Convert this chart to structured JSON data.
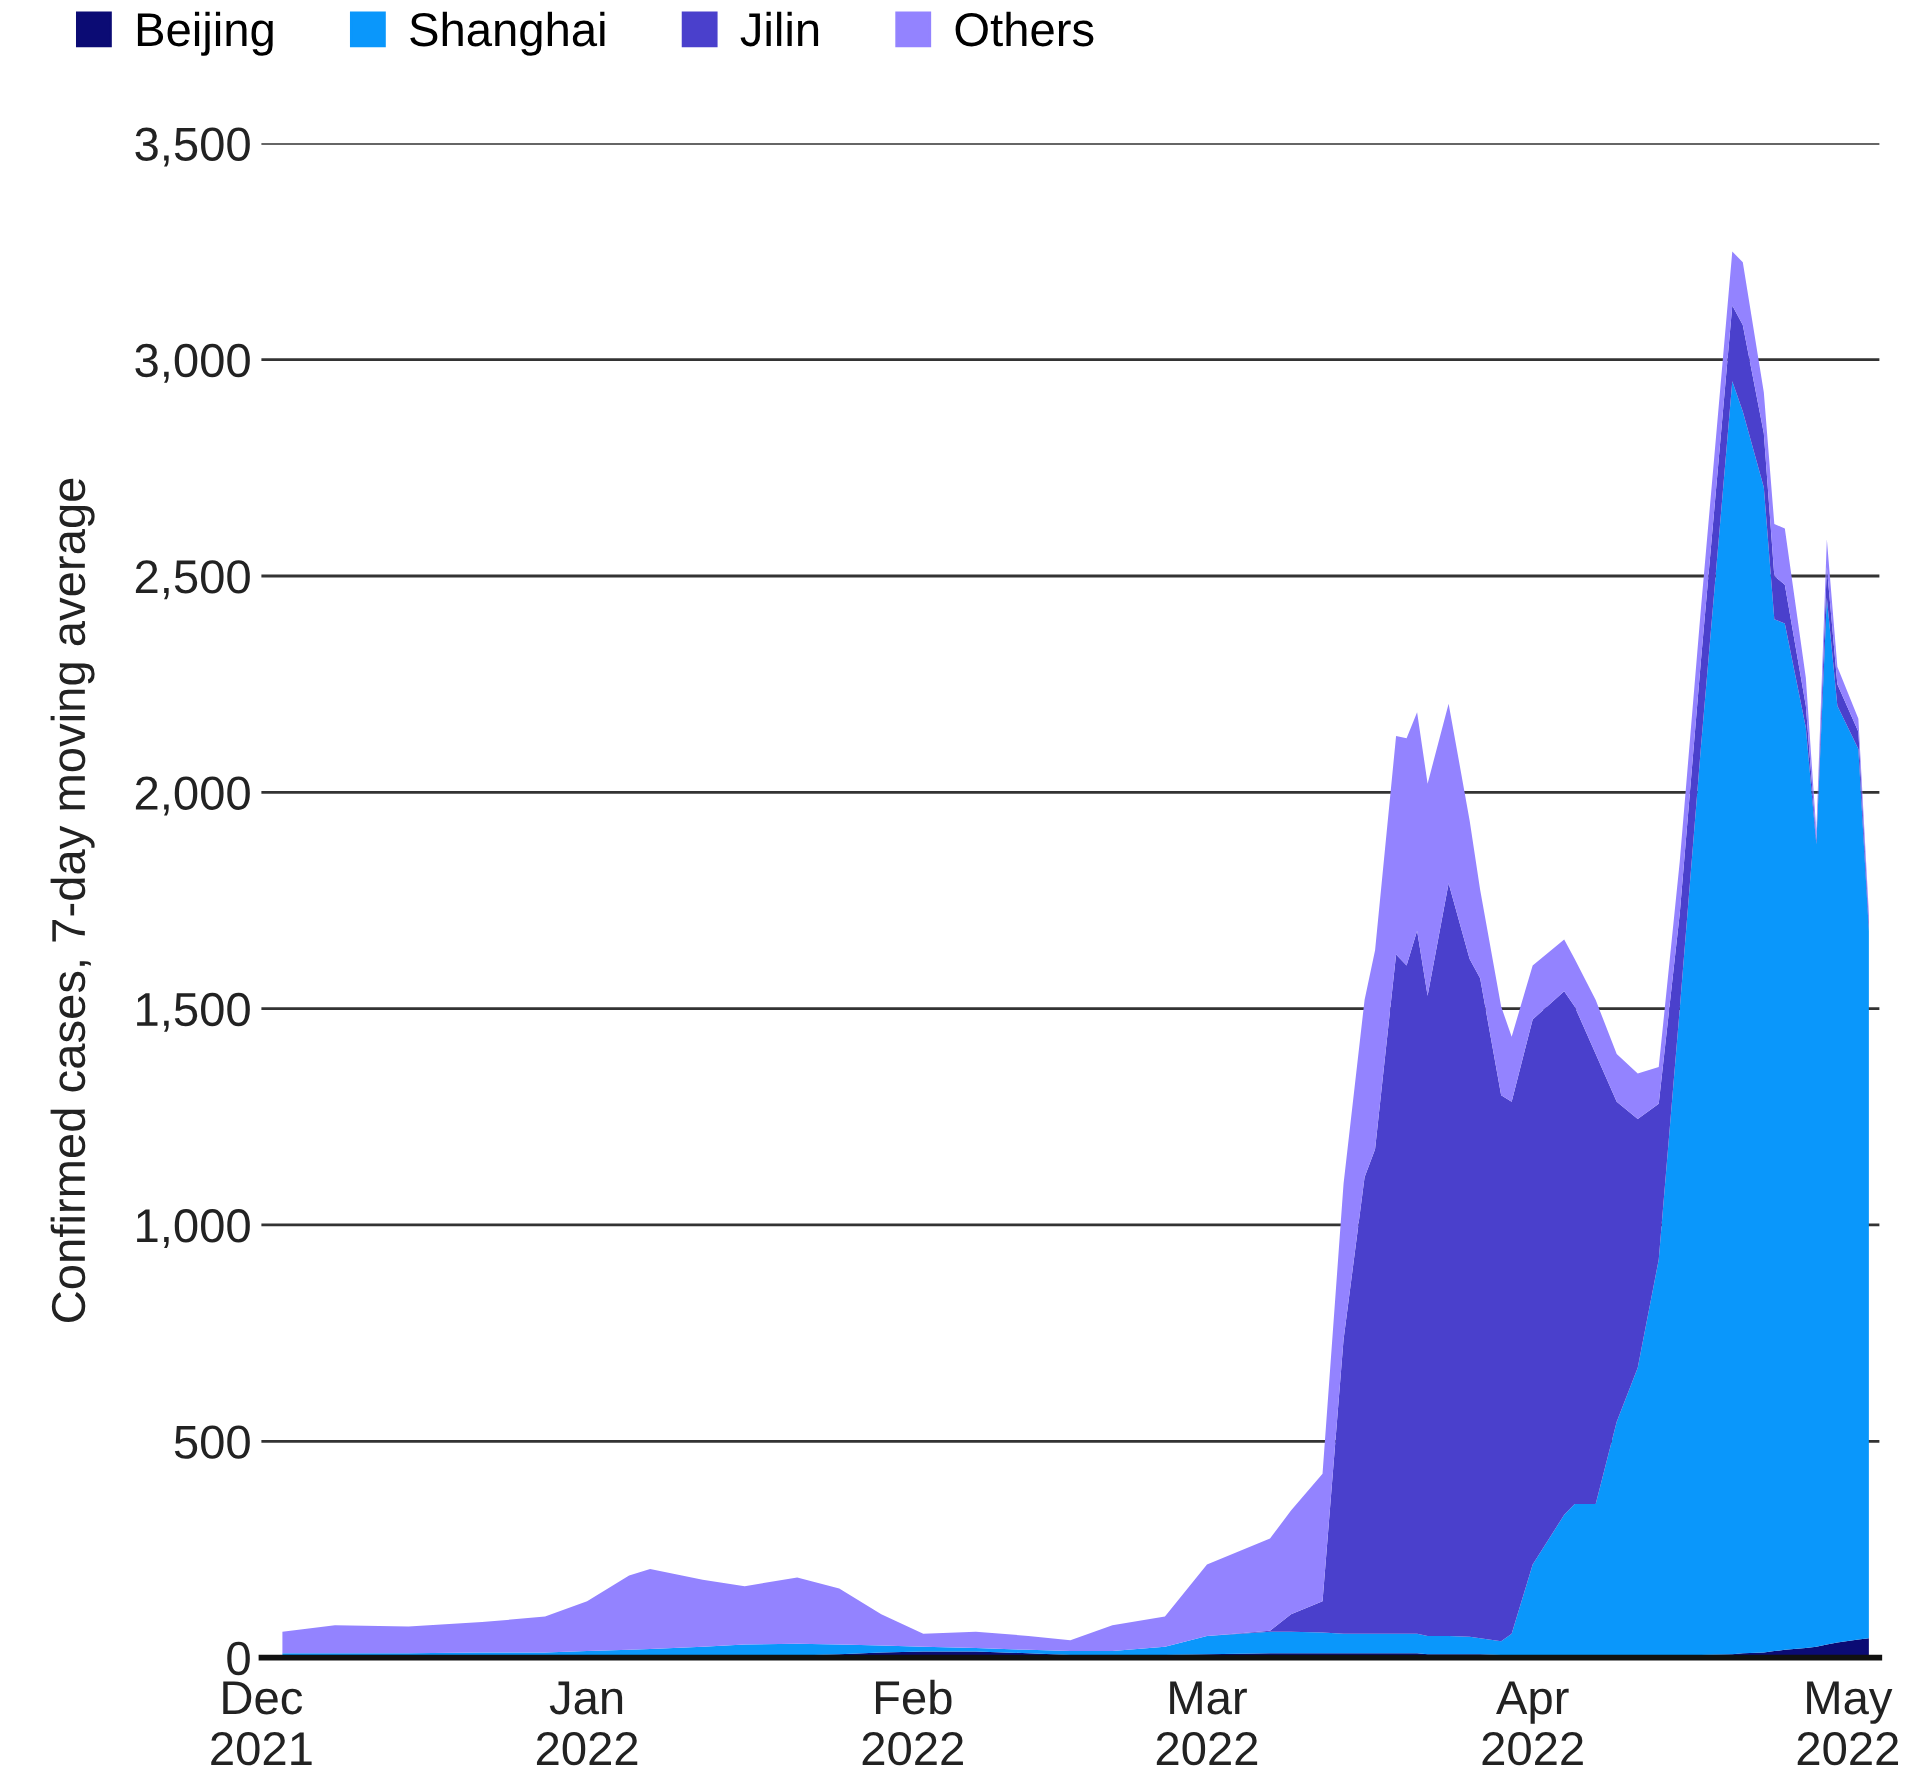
{
  "chart_data": {
    "type": "area",
    "stacked": true,
    "ylabel": "Confirmed cases, 7-day moving average",
    "x": [
      "2021-12-03",
      "2021-12-08",
      "2021-12-15",
      "2021-12-22",
      "2021-12-28",
      "2022-01-01",
      "2022-01-05",
      "2022-01-07",
      "2022-01-12",
      "2022-01-16",
      "2022-01-21",
      "2022-01-25",
      "2022-01-29",
      "2022-02-02",
      "2022-02-07",
      "2022-02-12",
      "2022-02-16",
      "2022-02-20",
      "2022-02-25",
      "2022-03-01",
      "2022-03-07",
      "2022-03-09",
      "2022-03-12",
      "2022-03-14",
      "2022-03-16",
      "2022-03-17",
      "2022-03-19",
      "2022-03-20",
      "2022-03-21",
      "2022-03-22",
      "2022-03-24",
      "2022-03-26",
      "2022-03-27",
      "2022-03-29",
      "2022-03-30",
      "2022-04-01",
      "2022-04-04",
      "2022-04-05",
      "2022-04-07",
      "2022-04-09",
      "2022-04-11",
      "2022-04-13",
      "2022-04-15",
      "2022-04-17",
      "2022-04-20",
      "2022-04-21",
      "2022-04-23",
      "2022-04-24",
      "2022-04-25",
      "2022-04-27",
      "2022-04-28",
      "2022-04-29",
      "2022-04-30",
      "2022-05-02",
      "2022-05-03"
    ],
    "series": [
      {
        "name": "Beijing",
        "color": "#0b0b74",
        "values": [
          2,
          2,
          2,
          2,
          2,
          3,
          3,
          3,
          3,
          4,
          5,
          8,
          12,
          14,
          14,
          10,
          6,
          5,
          6,
          8,
          10,
          10,
          10,
          10,
          10,
          10,
          10,
          10,
          10,
          8,
          8,
          8,
          8,
          6,
          6,
          5,
          5,
          5,
          5,
          5,
          5,
          5,
          5,
          6,
          8,
          10,
          12,
          15,
          18,
          22,
          25,
          30,
          35,
          42,
          45
        ]
      },
      {
        "name": "Shanghai",
        "color": "#0a97fb",
        "values": [
          8,
          8,
          8,
          10,
          10,
          12,
          15,
          17,
          22,
          26,
          27,
          22,
          16,
          11,
          8,
          8,
          9,
          10,
          19,
          42,
          50,
          50,
          48,
          45,
          45,
          45,
          45,
          45,
          45,
          42,
          42,
          40,
          37,
          32,
          49,
          210,
          325,
          350,
          350,
          540,
          665,
          915,
          1495,
          2094,
          2942,
          2870,
          2693,
          2385,
          2372,
          2128,
          1855,
          2420,
          2165,
          2058,
          1635
        ]
      },
      {
        "name": "Jilin",
        "color": "#4a40cc",
        "values": [
          0,
          0,
          0,
          0,
          0,
          0,
          0,
          0,
          0,
          0,
          0,
          0,
          0,
          0,
          0,
          0,
          0,
          0,
          0,
          0,
          2,
          40,
          72,
          680,
          1055,
          1120,
          1570,
          1545,
          1625,
          1480,
          1740,
          1567,
          1525,
          1262,
          1230,
          1260,
          1210,
          1150,
          1040,
          740,
          575,
          360,
          220,
          200,
          175,
          200,
          125,
          100,
          90,
          50,
          10,
          70,
          50,
          40,
          20
        ]
      },
      {
        "name": "Others",
        "color": "#9383ff",
        "values": [
          50,
          65,
          62,
          70,
          83,
          115,
          172,
          185,
          155,
          135,
          153,
          130,
          72,
          30,
          38,
          32,
          25,
          60,
          70,
          165,
          213,
          240,
          295,
          360,
          410,
          460,
          505,
          525,
          505,
          490,
          415,
          320,
          205,
          205,
          150,
          125,
          120,
          110,
          125,
          110,
          105,
          85,
          120,
          120,
          125,
          145,
          95,
          120,
          130,
          65,
          20,
          65,
          40,
          30,
          20
        ]
      }
    ],
    "xlim": [
      "2021-12-01",
      "2022-05-04"
    ],
    "xticks": [
      {
        "value": "2021-12-01",
        "label": "Dec\n2021"
      },
      {
        "value": "2022-01-01",
        "label": "Jan\n2022"
      },
      {
        "value": "2022-02-01",
        "label": "Feb\n2022"
      },
      {
        "value": "2022-03-01",
        "label": "Mar\n2022"
      },
      {
        "value": "2022-04-01",
        "label": "Apr\n2022"
      },
      {
        "value": "2022-05-01",
        "label": "May\n2022"
      }
    ],
    "ylim": [
      0,
      3500
    ],
    "yticks": [
      0,
      {
        "value": 500,
        "label": "500"
      },
      {
        "value": 1000,
        "label": "1,000"
      },
      {
        "value": 1500,
        "label": "1,500"
      },
      {
        "value": 2000,
        "label": "2,000"
      },
      {
        "value": 2500,
        "label": "2,500"
      },
      {
        "value": 3000,
        "label": "3,000"
      },
      {
        "value": 3500,
        "label": "3,500"
      }
    ],
    "grid": "y",
    "legend": "top left"
  }
}
